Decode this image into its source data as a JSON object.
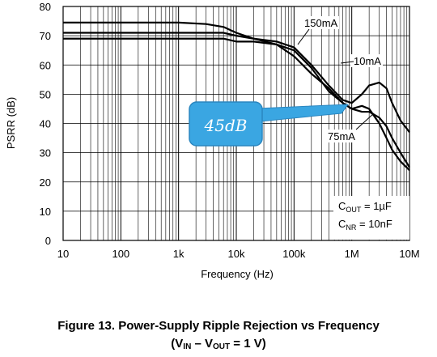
{
  "chart_data": {
    "type": "line",
    "xscale": "log",
    "xlim": [
      10,
      10000000
    ],
    "ylim": [
      0,
      80
    ],
    "grid": true,
    "xlabel": "Frequency (Hz)",
    "ylabel": "PSRR (dB)",
    "x_ticks": [
      "10",
      "100",
      "1k",
      "10k",
      "100k",
      "1M",
      "10M"
    ],
    "y_ticks": [
      "0",
      "10",
      "20",
      "30",
      "40",
      "50",
      "60",
      "70",
      "80"
    ],
    "series": [
      {
        "name": "150mA",
        "x": [
          10,
          100,
          1000,
          3000,
          6000,
          10000,
          20000,
          50000,
          100000,
          200000,
          400000,
          700000,
          1000000,
          1500000,
          2000000,
          3000000,
          4000000,
          5000000,
          7000000,
          10000000
        ],
        "y": [
          69,
          69,
          69,
          69,
          69,
          68,
          68,
          67,
          65,
          59,
          51,
          47,
          45,
          44,
          44,
          42,
          39,
          35,
          30,
          25
        ]
      },
      {
        "name": "10mA",
        "x": [
          10,
          100,
          1000,
          3000,
          6000,
          10000,
          20000,
          50000,
          100000,
          200000,
          400000,
          700000,
          1000000,
          1500000,
          2000000,
          3000000,
          4000000,
          5000000,
          7000000,
          10000000
        ],
        "y": [
          71,
          71,
          71,
          71,
          71,
          70,
          69,
          68,
          66,
          60,
          53,
          48,
          47,
          50,
          53,
          54,
          52,
          47,
          41,
          37
        ]
      },
      {
        "name": "75mA",
        "x": [
          10,
          100,
          1000,
          3000,
          6000,
          10000,
          20000,
          50000,
          100000,
          200000,
          400000,
          700000,
          1000000,
          1500000,
          2000000,
          3000000,
          4000000,
          5000000,
          7000000,
          10000000
        ],
        "y": [
          74.5,
          74.5,
          74.5,
          74,
          73,
          71,
          69,
          67,
          63,
          57,
          52,
          47,
          45,
          46,
          45,
          40,
          35,
          31,
          27,
          24
        ]
      }
    ],
    "annotations": {
      "label_150": "150mA",
      "label_10": "10mA",
      "label_75": "75mA",
      "callout": "45dB",
      "cout_label": "C",
      "cout_sub": "OUT",
      "cout_value": " = 1µF",
      "cnr_label": "C",
      "cnr_sub": "NR",
      "cnr_value": " = 10nF"
    },
    "colors": {
      "line": "#000000",
      "grid": "#000000",
      "callout_fill": "#3aa6e2",
      "callout_stroke": "#2a86c0"
    }
  },
  "caption": {
    "line1": "Figure 13. Power-Supply Ripple Rejection vs Frequency",
    "line2_open": "(V",
    "line2_sub1": "IN",
    "line2_mid": " – V",
    "line2_sub2": "OUT",
    "line2_end": " = 1 V)"
  }
}
